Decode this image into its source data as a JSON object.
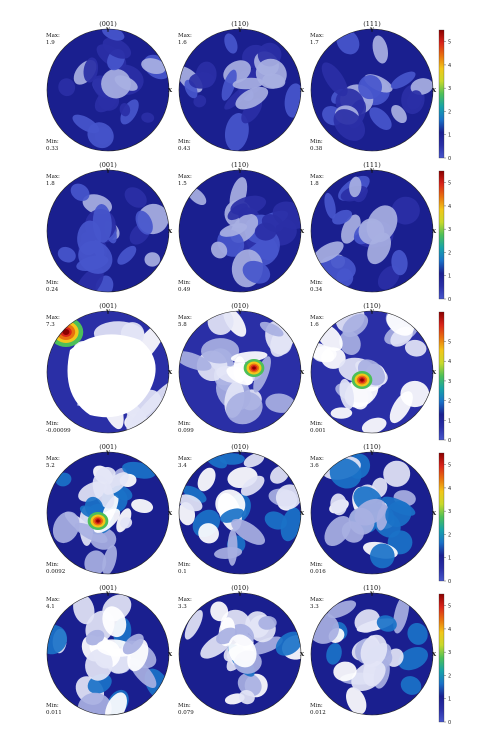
{
  "chart_data": {
    "type": "heatmap",
    "color_scale": [
      "#ffffff",
      "#e3e5f6",
      "#a8b0e2",
      "#4756cc",
      "#2a2fa6",
      "#1a1f8f",
      "#1a72c8",
      "#17a3a8",
      "#4cbf59",
      "#c7d92c",
      "#f2c61a",
      "#e8700f",
      "#d9241a",
      "#8b0000"
    ],
    "colorbar_ticks": [
      "0",
      "1",
      "2",
      "3",
      "4",
      "5"
    ],
    "rows": [
      {
        "colorbar_range": [
          0,
          5.5
        ],
        "panels": [
          {
            "title": "(001)",
            "max_label": "Max:",
            "max": "1.9",
            "min_label": "Min:",
            "min": "0.33",
            "axis_x": "X",
            "axis_y": "Y",
            "peaks": []
          },
          {
            "title": "(110)",
            "max_label": "Max:",
            "max": "1.6",
            "min_label": "Min:",
            "min": "0.43",
            "axis_x": "X",
            "axis_y": "Y",
            "peaks": []
          },
          {
            "title": "(111)",
            "max_label": "Max:",
            "max": "1.7",
            "min_label": "Min:",
            "min": "0.38",
            "axis_x": "X",
            "axis_y": "Y",
            "peaks": []
          }
        ]
      },
      {
        "colorbar_range": [
          0,
          5.5
        ],
        "panels": [
          {
            "title": "(001)",
            "max_label": "Max:",
            "max": "1.8",
            "min_label": "Min:",
            "min": "0.24",
            "axis_x": "X",
            "axis_y": "Y",
            "peaks": []
          },
          {
            "title": "(110)",
            "max_label": "Max:",
            "max": "1.5",
            "min_label": "Min:",
            "min": "0.49",
            "axis_x": "X",
            "axis_y": "Y",
            "peaks": []
          },
          {
            "title": "(111)",
            "max_label": "Max:",
            "max": "1.8",
            "min_label": "Min:",
            "min": "0.34",
            "axis_x": "X",
            "axis_y": "Y",
            "peaks": []
          }
        ]
      },
      {
        "colorbar_range": [
          0,
          6.5
        ],
        "panels": [
          {
            "title": "(001)",
            "max_label": "Max:",
            "max": "7.3",
            "min_label": "Min:",
            "min": "-0.00099",
            "axis_x": "X",
            "axis_y": "Y",
            "peaks": [
              "NW"
            ]
          },
          {
            "title": "(010)",
            "max_label": "Max:",
            "max": "5.8",
            "min_label": "Min:",
            "min": "0.099",
            "axis_x": "X",
            "axis_y": "Y",
            "peaks": [
              "E"
            ]
          },
          {
            "title": "(110)",
            "max_label": "Max:",
            "max": "1.6",
            "min_label": "Min:",
            "min": "0.001",
            "axis_x": "X",
            "axis_y": "Y",
            "peaks": [
              "center"
            ]
          }
        ]
      },
      {
        "colorbar_range": [
          0,
          5.5
        ],
        "panels": [
          {
            "title": "(001)",
            "max_label": "Max:",
            "max": "5.2",
            "min_label": "Min:",
            "min": "0.0092",
            "axis_x": "X",
            "axis_y": "Y",
            "peaks": [
              "center"
            ]
          },
          {
            "title": "(010)",
            "max_label": "Max:",
            "max": "3.4",
            "min_label": "Min:",
            "min": "0.1",
            "axis_x": "X",
            "axis_y": "Y",
            "peaks": []
          },
          {
            "title": "(110)",
            "max_label": "Max:",
            "max": "3.6",
            "min_label": "Min:",
            "min": "0.016",
            "axis_x": "X",
            "axis_y": "Y",
            "peaks": []
          }
        ]
      },
      {
        "colorbar_range": [
          0,
          5.5
        ],
        "panels": [
          {
            "title": "(001)",
            "max_label": "Max:",
            "max": "4.1",
            "min_label": "Min:",
            "min": "0.011",
            "axis_x": "X",
            "axis_y": "Y",
            "peaks": []
          },
          {
            "title": "(010)",
            "max_label": "Max:",
            "max": "3.3",
            "min_label": "Min:",
            "min": "0.079",
            "axis_x": "X",
            "axis_y": "Y",
            "peaks": []
          },
          {
            "title": "(110)",
            "max_label": "Max:",
            "max": "3.3",
            "min_label": "Min:",
            "min": "0.012",
            "axis_x": "X",
            "axis_y": "Y",
            "peaks": []
          }
        ]
      }
    ]
  }
}
